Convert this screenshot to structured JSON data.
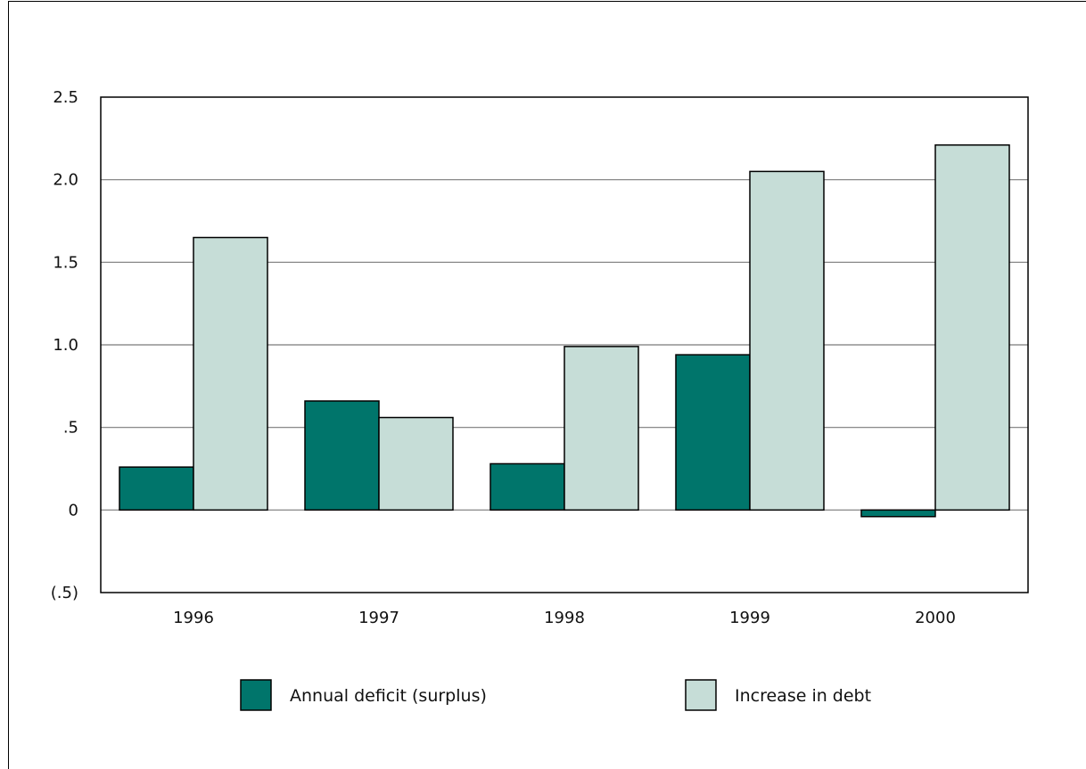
{
  "chart_data": {
    "type": "bar",
    "title": "",
    "xlabel": "",
    "ylabel": "",
    "categories": [
      "1996",
      "1997",
      "1998",
      "1999",
      "2000"
    ],
    "series": [
      {
        "name": "Annual deficit (surplus)",
        "values": [
          0.26,
          0.66,
          0.28,
          0.94,
          -0.04
        ],
        "color": "#00756b"
      },
      {
        "name": "Increase in debt",
        "values": [
          1.65,
          0.56,
          0.99,
          2.05,
          2.21
        ],
        "color": "#c6ddd7"
      }
    ],
    "ylim": [
      -0.5,
      2.5
    ],
    "yticks": [
      2.5,
      2.0,
      1.5,
      1.0,
      0.5,
      0,
      -0.5
    ],
    "ytick_labels": [
      "2.5",
      "2.0",
      "1.5",
      "1.0",
      ".5",
      "0",
      "(.5)"
    ],
    "grid": true,
    "legend": "bottom"
  }
}
